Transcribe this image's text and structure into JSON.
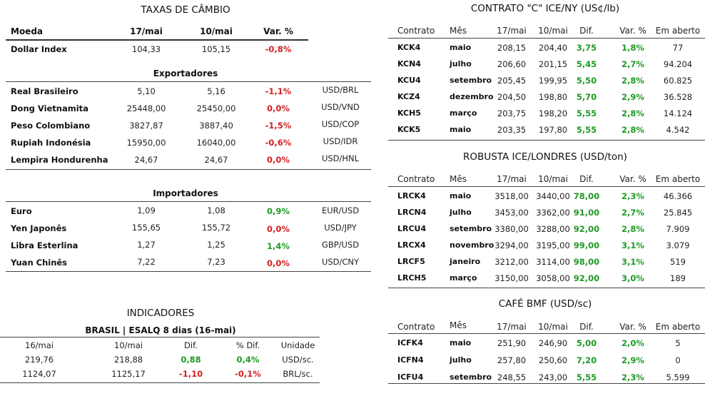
{
  "fx": {
    "title": "TAXAS DE CÂMBIO",
    "headers": {
      "moeda": "Moeda",
      "d1": "17/mai",
      "d2": "10/mai",
      "var": "Var. %"
    },
    "dollar": {
      "name": "Dollar Index",
      "d1": "104,33",
      "d2": "105,15",
      "var": "-0,8%"
    },
    "exp_title": "Exportadores",
    "exporters": [
      {
        "name": "Real Brasileiro",
        "d1": "5,10",
        "d2": "5,16",
        "var": "-1,1%",
        "pair": "USD/BRL"
      },
      {
        "name": "Dong Vietnamita",
        "d1": "25448,00",
        "d2": "25450,00",
        "var": "0,0%",
        "pair": "USD/VND"
      },
      {
        "name": "Peso Colombiano",
        "d1": "3827,87",
        "d2": "3887,40",
        "var": "-1,5%",
        "pair": "USD/COP"
      },
      {
        "name": "Rupiah Indonésia",
        "d1": "15950,00",
        "d2": "16040,00",
        "var": "-0,6%",
        "pair": "USD/IDR"
      },
      {
        "name": "Lempira Hondurenha",
        "d1": "24,67",
        "d2": "24,67",
        "var": "0,0%",
        "pair": "USD/HNL"
      }
    ],
    "imp_title": "Importadores",
    "importers": [
      {
        "name": "Euro",
        "d1": "1,09",
        "d2": "1,08",
        "var": "0,9%",
        "pair": "EUR/USD"
      },
      {
        "name": "Yen Japonês",
        "d1": "155,65",
        "d2": "155,72",
        "var": "0,0%",
        "pair": "USD/JPY"
      },
      {
        "name": "Libra Esterlina",
        "d1": "1,27",
        "d2": "1,25",
        "var": "1,4%",
        "pair": "GBP/USD"
      },
      {
        "name": "Yuan Chinês",
        "d1": "7,22",
        "d2": "7,23",
        "var": "0,0%",
        "pair": "USD/CNY"
      }
    ]
  },
  "indicators": {
    "title": "INDICADORES",
    "subtitle": "BRASIL | ESALQ 8 dias (16-mai)",
    "headers": {
      "d1": "16/mai",
      "d2": "10/mai",
      "dif": "Dif.",
      "pct": "% Dif.",
      "unit": "Unidade"
    },
    "rows": [
      {
        "d1": "219,76",
        "d2": "218,88",
        "dif": "0,88",
        "pct": "0,4%",
        "unit": "USD/sc."
      },
      {
        "d1": "1124,07",
        "d2": "1125,17",
        "dif": "-1,10",
        "pct": "-0,1%",
        "unit": "BRL/sc."
      }
    ]
  },
  "headers_common": {
    "contrato": "Contrato",
    "mes": "Mês",
    "d1": "17/mai",
    "d2": "10/mai",
    "dif": "Dif.",
    "var": "Var. %",
    "oi": "Em aberto"
  },
  "ice_ny": {
    "title": "CONTRATO \"C\" ICE/NY (US¢/lb)",
    "rows": [
      {
        "c": "KCK4",
        "m": "maio",
        "d1": "208,15",
        "d2": "204,40",
        "dif": "3,75",
        "var": "1,8%",
        "oi": "77"
      },
      {
        "c": "KCN4",
        "m": "julho",
        "d1": "206,60",
        "d2": "201,15",
        "dif": "5,45",
        "var": "2,7%",
        "oi": "94.204"
      },
      {
        "c": "KCU4",
        "m": "setembro",
        "d1": "205,45",
        "d2": "199,95",
        "dif": "5,50",
        "var": "2,8%",
        "oi": "60.825"
      },
      {
        "c": "KCZ4",
        "m": "dezembro",
        "d1": "204,50",
        "d2": "198,80",
        "dif": "5,70",
        "var": "2,9%",
        "oi": "36.528"
      },
      {
        "c": "KCH5",
        "m": "março",
        "d1": "203,75",
        "d2": "198,20",
        "dif": "5,55",
        "var": "2,8%",
        "oi": "14.124"
      },
      {
        "c": "KCK5",
        "m": "maio",
        "d1": "203,35",
        "d2": "197,80",
        "dif": "5,55",
        "var": "2,8%",
        "oi": "4.542"
      }
    ]
  },
  "robusta": {
    "title": "ROBUSTA ICE/LONDRES (USD/ton)",
    "rows": [
      {
        "c": "LRCK4",
        "m": "maio",
        "d1": "3518,00",
        "d2": "3440,00",
        "dif": "78,00",
        "var": "2,3%",
        "oi": "46.366"
      },
      {
        "c": "LRCN4",
        "m": "julho",
        "d1": "3453,00",
        "d2": "3362,00",
        "dif": "91,00",
        "var": "2,7%",
        "oi": "25.845"
      },
      {
        "c": "LRCU4",
        "m": "setembro",
        "d1": "3380,00",
        "d2": "3288,00",
        "dif": "92,00",
        "var": "2,8%",
        "oi": "7.909"
      },
      {
        "c": "LRCX4",
        "m": "novembro",
        "d1": "3294,00",
        "d2": "3195,00",
        "dif": "99,00",
        "var": "3,1%",
        "oi": "3.079"
      },
      {
        "c": "LRCF5",
        "m": "janeiro",
        "d1": "3212,00",
        "d2": "3114,00",
        "dif": "98,00",
        "var": "3,1%",
        "oi": "519"
      },
      {
        "c": "LRCH5",
        "m": "março",
        "d1": "3150,00",
        "d2": "3058,00",
        "dif": "92,00",
        "var": "3,0%",
        "oi": "189"
      }
    ]
  },
  "bmf": {
    "title": "CAFÉ BMF (USD/sc)",
    "rows": [
      {
        "c": "ICFK4",
        "m": "maio",
        "d1": "251,90",
        "d2": "246,90",
        "dif": "5,00",
        "var": "2,0%",
        "oi": "5"
      },
      {
        "c": "ICFN4",
        "m": "julho",
        "d1": "257,80",
        "d2": "250,60",
        "dif": "7,20",
        "var": "2,9%",
        "oi": "0"
      },
      {
        "c": "ICFU4",
        "m": "setembro",
        "d1": "248,55",
        "d2": "243,00",
        "dif": "5,55",
        "var": "2,3%",
        "oi": "5.599"
      }
    ]
  }
}
